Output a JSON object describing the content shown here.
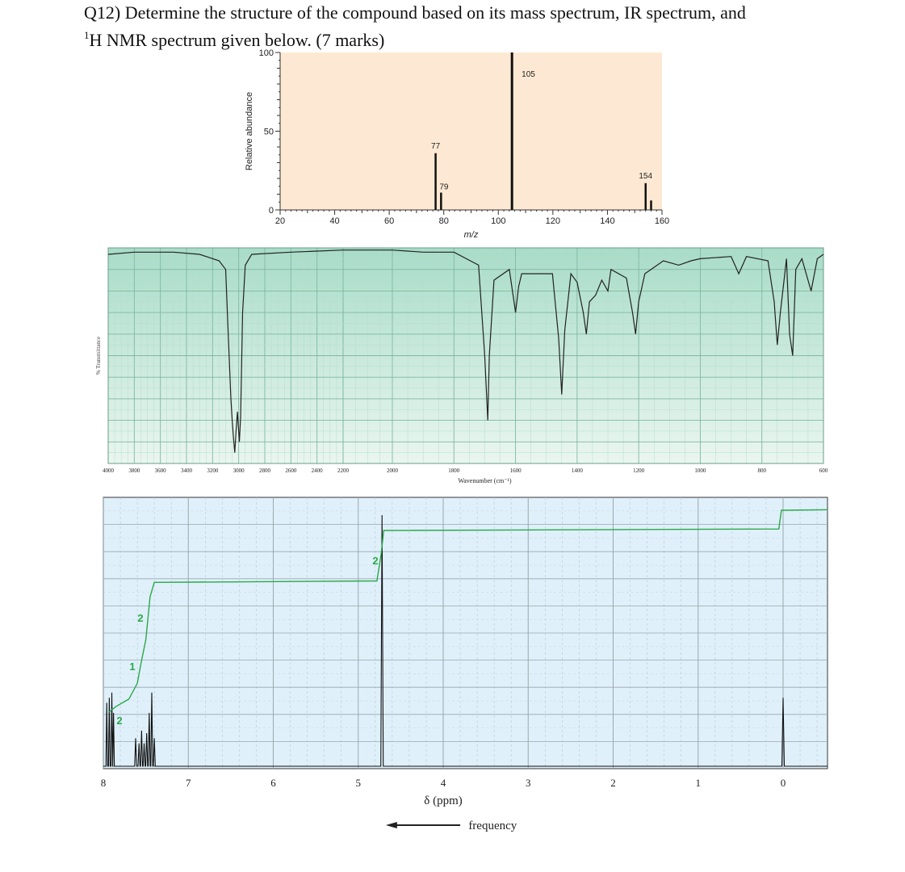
{
  "question": {
    "line1": "Q12) Determine the structure of the compound based on its mass spectrum, IR spectrum, and",
    "sup": "1",
    "line2": "H NMR spectrum given below. (7 marks)"
  },
  "colors": {
    "ms_bg": "#fde9d3",
    "ir_bg": "#cce9dd",
    "nmr_bg": "#dff0fa",
    "integral": "#2aa84a",
    "trace": "#111111"
  },
  "chart_data": [
    {
      "type": "bar",
      "name": "mass-spectrum",
      "xlabel": "m/z",
      "ylabel": "Relative abundance",
      "xlim": [
        20,
        160
      ],
      "ylim": [
        0,
        100
      ],
      "xticks": [
        20,
        40,
        60,
        80,
        100,
        120,
        140,
        160
      ],
      "yticks": [
        0,
        50,
        100
      ],
      "peaks": [
        {
          "mz": 77,
          "abundance": 36,
          "label": "77"
        },
        {
          "mz": 79,
          "abundance": 11,
          "label": "79"
        },
        {
          "mz": 105,
          "abundance": 100,
          "label": "105"
        },
        {
          "mz": 154,
          "abundance": 17,
          "label": "154"
        },
        {
          "mz": 156,
          "abundance": 6,
          "label": ""
        }
      ]
    },
    {
      "type": "line",
      "name": "ir-spectrum",
      "xlabel": "Wavenumber (cm⁻¹)",
      "ylabel": "% Transmittance",
      "xticks": [
        "4000",
        "3800",
        "3600",
        "3400",
        "3200",
        "3000",
        "2800",
        "2600",
        "2400",
        "2200",
        "2000",
        "1800",
        "1600",
        "1400",
        "1200",
        "1000",
        "800",
        "600"
      ],
      "spectrum": [
        [
          4000,
          97
        ],
        [
          3800,
          98
        ],
        [
          3500,
          98
        ],
        [
          3300,
          97
        ],
        [
          3150,
          94
        ],
        [
          3100,
          90
        ],
        [
          3080,
          60
        ],
        [
          3060,
          30
        ],
        [
          3050,
          20
        ],
        [
          3040,
          12
        ],
        [
          3030,
          5
        ],
        [
          3020,
          15
        ],
        [
          3010,
          24
        ],
        [
          2995,
          10
        ],
        [
          2985,
          22
        ],
        [
          2970,
          70
        ],
        [
          2950,
          92
        ],
        [
          2900,
          97
        ],
        [
          2600,
          98
        ],
        [
          2200,
          99
        ],
        [
          2000,
          99
        ],
        [
          1900,
          98
        ],
        [
          1800,
          98
        ],
        [
          1720,
          92
        ],
        [
          1700,
          50
        ],
        [
          1690,
          20
        ],
        [
          1685,
          50
        ],
        [
          1670,
          85
        ],
        [
          1620,
          90
        ],
        [
          1600,
          70
        ],
        [
          1590,
          82
        ],
        [
          1580,
          88
        ],
        [
          1480,
          88
        ],
        [
          1460,
          58
        ],
        [
          1450,
          32
        ],
        [
          1440,
          62
        ],
        [
          1420,
          88
        ],
        [
          1400,
          84
        ],
        [
          1380,
          70
        ],
        [
          1370,
          60
        ],
        [
          1360,
          75
        ],
        [
          1340,
          78
        ],
        [
          1320,
          85
        ],
        [
          1300,
          80
        ],
        [
          1290,
          90
        ],
        [
          1240,
          86
        ],
        [
          1220,
          70
        ],
        [
          1210,
          60
        ],
        [
          1200,
          75
        ],
        [
          1180,
          88
        ],
        [
          1160,
          90
        ],
        [
          1120,
          94
        ],
        [
          1070,
          92
        ],
        [
          1030,
          94
        ],
        [
          1000,
          95
        ],
        [
          900,
          96
        ],
        [
          875,
          88
        ],
        [
          850,
          96
        ],
        [
          780,
          94
        ],
        [
          760,
          75
        ],
        [
          750,
          55
        ],
        [
          740,
          70
        ],
        [
          720,
          95
        ],
        [
          710,
          60
        ],
        [
          700,
          50
        ],
        [
          690,
          90
        ],
        [
          670,
          95
        ],
        [
          640,
          80
        ],
        [
          620,
          95
        ],
        [
          600,
          97
        ]
      ]
    },
    {
      "type": "line",
      "name": "1h-nmr-spectrum",
      "xlabel": "δ (ppm)",
      "ylabel": "",
      "xlim": [
        8,
        0
      ],
      "xticks": [
        "8",
        "7",
        "6",
        "5",
        "4",
        "3",
        "2",
        "1",
        "0"
      ],
      "peaks": [
        {
          "ppm": 7.95,
          "height": 0.3,
          "integration": "2"
        },
        {
          "ppm": 7.55,
          "height": 0.15,
          "integration": "1"
        },
        {
          "ppm": 7.45,
          "height": 0.3,
          "integration": "2"
        },
        {
          "ppm": 4.72,
          "height": 1.0,
          "integration": "2"
        },
        {
          "ppm": 0.0,
          "height": 0.28,
          "integration": ""
        }
      ],
      "arrow_label": "frequency"
    }
  ]
}
